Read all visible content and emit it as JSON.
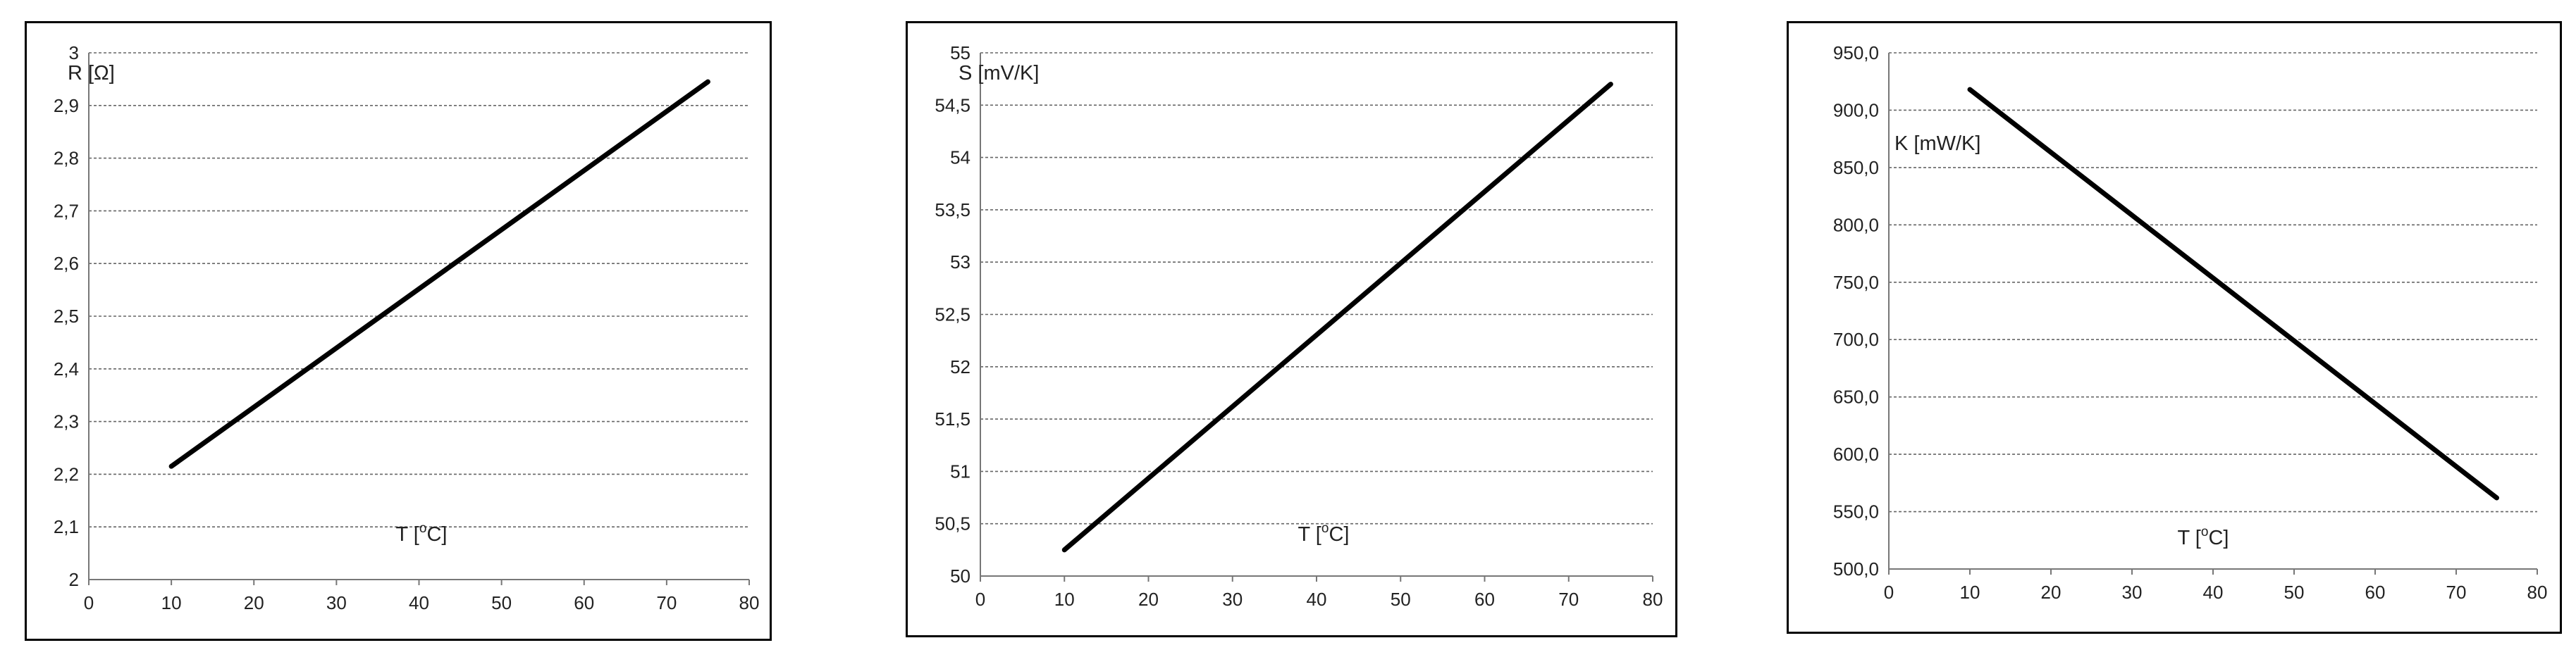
{
  "chart_data": [
    {
      "type": "line",
      "ylabel": "R [Ω]",
      "xlabel": {
        "prefix": "T [",
        "sup": "o",
        "suffix": "C]"
      },
      "xlim": [
        0,
        80
      ],
      "ylim": [
        2,
        3
      ],
      "xticks": [
        "0",
        "10",
        "20",
        "30",
        "40",
        "50",
        "60",
        "70",
        "80"
      ],
      "yticks": [
        "2",
        "2,1",
        "2,2",
        "2,3",
        "2,4",
        "2,5",
        "2,6",
        "2,7",
        "2,8",
        "2,9",
        "3"
      ],
      "grid": "horizontal dashed",
      "series": [
        {
          "x": [
            10,
            75
          ],
          "y": [
            2.215,
            2.945
          ],
          "color": "#000000"
        }
      ]
    },
    {
      "type": "line",
      "ylabel": "S [mV/K]",
      "xlabel": {
        "prefix": "T [",
        "sup": "o",
        "suffix": "C]"
      },
      "xlim": [
        0,
        80
      ],
      "ylim": [
        50,
        55
      ],
      "xticks": [
        "0",
        "10",
        "20",
        "30",
        "40",
        "50",
        "60",
        "70",
        "80"
      ],
      "yticks": [
        "50",
        "50,5",
        "51",
        "51,5",
        "52",
        "52,5",
        "53",
        "53,5",
        "54",
        "54,5",
        "55"
      ],
      "grid": "horizontal dashed",
      "series": [
        {
          "x": [
            10,
            75
          ],
          "y": [
            50.25,
            54.7
          ],
          "color": "#000000"
        }
      ]
    },
    {
      "type": "line",
      "ylabel": "K [mW/K]",
      "xlabel": {
        "prefix": "T [",
        "sup": "o",
        "suffix": "C]"
      },
      "xlim": [
        0,
        80
      ],
      "ylim": [
        500,
        950
      ],
      "xticks": [
        "0",
        "10",
        "20",
        "30",
        "40",
        "50",
        "60",
        "70",
        "80"
      ],
      "yticks": [
        "500,0",
        "550,0",
        "600,0",
        "650,0",
        "700,0",
        "750,0",
        "800,0",
        "850,0",
        "900,0",
        "950,0"
      ],
      "grid": "horizontal dashed",
      "series": [
        {
          "x": [
            10,
            75
          ],
          "y": [
            918,
            562
          ],
          "color": "#000000"
        }
      ]
    }
  ]
}
